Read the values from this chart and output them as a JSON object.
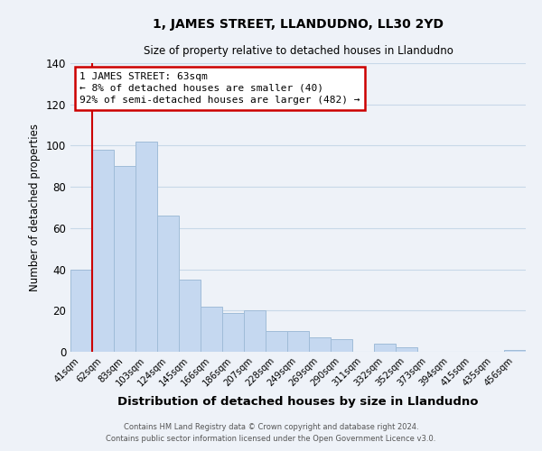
{
  "title": "1, JAMES STREET, LLANDUDNO, LL30 2YD",
  "subtitle": "Size of property relative to detached houses in Llandudno",
  "xlabel": "Distribution of detached houses by size in Llandudno",
  "ylabel": "Number of detached properties",
  "bar_labels": [
    "41sqm",
    "62sqm",
    "83sqm",
    "103sqm",
    "124sqm",
    "145sqm",
    "166sqm",
    "186sqm",
    "207sqm",
    "228sqm",
    "249sqm",
    "269sqm",
    "290sqm",
    "311sqm",
    "332sqm",
    "352sqm",
    "373sqm",
    "394sqm",
    "415sqm",
    "435sqm",
    "456sqm"
  ],
  "bar_values": [
    40,
    98,
    90,
    102,
    66,
    35,
    22,
    19,
    20,
    10,
    10,
    7,
    6,
    0,
    4,
    2,
    0,
    0,
    0,
    0,
    1
  ],
  "bar_color": "#c5d8f0",
  "bar_edge_color": "#a0bcd8",
  "grid_color": "#c8d8e8",
  "background_color": "#eef2f8",
  "vline_x_index": 1,
  "vline_color": "#cc0000",
  "annotation_text": "1 JAMES STREET: 63sqm\n← 8% of detached houses are smaller (40)\n92% of semi-detached houses are larger (482) →",
  "annotation_box_color": "#ffffff",
  "annotation_box_edge": "#cc0000",
  "ylim": [
    0,
    140
  ],
  "yticks": [
    0,
    20,
    40,
    60,
    80,
    100,
    120,
    140
  ],
  "footnote1": "Contains HM Land Registry data © Crown copyright and database right 2024.",
  "footnote2": "Contains public sector information licensed under the Open Government Licence v3.0."
}
